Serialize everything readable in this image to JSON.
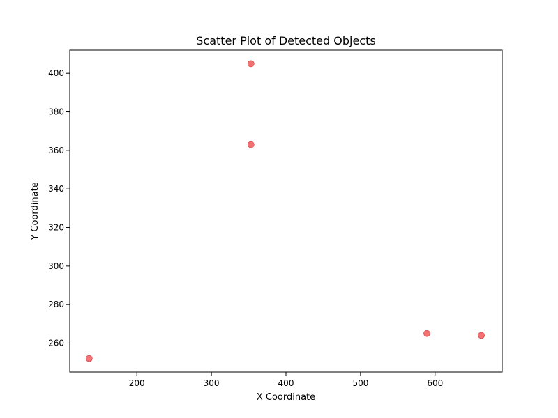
{
  "chart_data": {
    "type": "scatter",
    "title": "Scatter Plot of Detected Objects",
    "xlabel": "X Coordinate",
    "ylabel": "Y Coordinate",
    "xlim": [
      110,
      690
    ],
    "ylim": [
      245,
      412
    ],
    "xticks": [
      200,
      300,
      400,
      500,
      600
    ],
    "yticks": [
      260,
      280,
      300,
      320,
      340,
      360,
      380,
      400
    ],
    "grid": false,
    "point_color": "#f05a5a",
    "points": [
      {
        "x": 353,
        "y": 405
      },
      {
        "x": 353,
        "y": 363
      },
      {
        "x": 589,
        "y": 265
      },
      {
        "x": 662,
        "y": 264
      },
      {
        "x": 136,
        "y": 252
      }
    ]
  }
}
